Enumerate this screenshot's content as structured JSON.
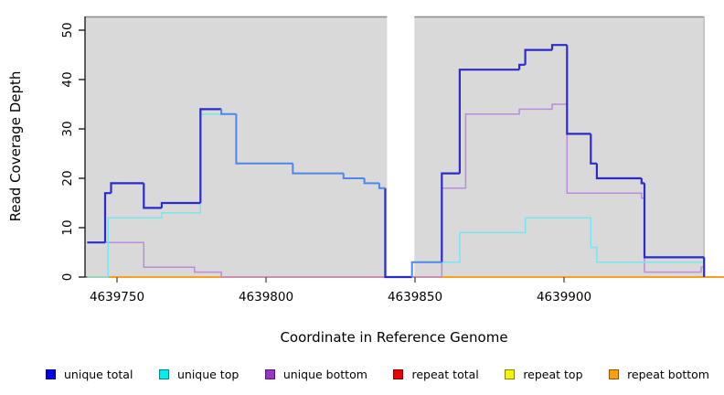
{
  "figure": {
    "background": "#ffffff",
    "plot_background": "#ffffff",
    "shaded_band_color": "#d9d9d9"
  },
  "chart_data": {
    "type": "line",
    "subtype": "step-coverage",
    "title": "",
    "xlabel": "Coordinate in Reference Genome",
    "ylabel": "Read Coverage Depth",
    "xlim": [
      4639739.3,
      4639947
    ],
    "ylim": [
      0,
      52.8
    ],
    "grid": false,
    "legend_position": "bottom",
    "x_ticks": [
      4639750,
      4639800,
      4639850,
      4639900
    ],
    "y_ticks": [
      0,
      10,
      20,
      30,
      40,
      50
    ],
    "shaded_regions": [
      {
        "x0": 4639739.3,
        "x1": 4639840.6,
        "color": "#d9d9d9"
      },
      {
        "x0": 4639849.8,
        "x1": 4639947,
        "color": "#d9d9d9"
      }
    ],
    "series": [
      {
        "name": "unique total",
        "color": "#2b2bcd",
        "overlap_color": "#4f86ec",
        "width": 2.2,
        "points": [
          [
            4639740,
            7
          ],
          [
            4639746,
            17
          ],
          [
            4639748,
            19
          ],
          [
            4639759,
            14
          ],
          [
            4639765,
            15
          ],
          [
            4639778,
            34
          ],
          [
            4639785,
            33
          ],
          [
            4639790,
            23
          ],
          [
            4639809,
            21
          ],
          [
            4639826,
            20
          ],
          [
            4639833,
            19
          ],
          [
            4639838,
            18
          ],
          [
            4639840,
            0
          ],
          [
            4639849,
            3
          ],
          [
            4639859,
            21
          ],
          [
            4639865,
            42
          ],
          [
            4639885,
            43
          ],
          [
            4639887,
            46
          ],
          [
            4639896,
            47
          ],
          [
            4639901,
            29
          ],
          [
            4639909,
            23
          ],
          [
            4639911,
            20
          ],
          [
            4639926,
            19
          ],
          [
            4639927,
            4
          ],
          [
            4639947,
            0
          ]
        ]
      },
      {
        "name": "unique top",
        "color": "#76e7ef",
        "width": 1.5,
        "points": [
          [
            4639740,
            0
          ],
          [
            4639747,
            12
          ],
          [
            4639765,
            13
          ],
          [
            4639778,
            33
          ],
          [
            4639790,
            23
          ],
          [
            4639809,
            21
          ],
          [
            4639826,
            20
          ],
          [
            4639833,
            19
          ],
          [
            4639838,
            18
          ],
          [
            4639840,
            0
          ],
          [
            4639849,
            3
          ],
          [
            4639865,
            9
          ],
          [
            4639887,
            12
          ],
          [
            4639909,
            6
          ],
          [
            4639911,
            3
          ]
        ]
      },
      {
        "name": "unique bottom",
        "color": "#bd8ade",
        "width": 1.5,
        "points": [
          [
            4639740,
            7
          ],
          [
            4639759,
            2
          ],
          [
            4639776,
            1
          ],
          [
            4639785,
            0
          ],
          [
            4639859,
            18
          ],
          [
            4639867,
            33
          ],
          [
            4639885,
            34
          ],
          [
            4639896,
            35
          ],
          [
            4639901,
            17
          ],
          [
            4639926,
            16
          ],
          [
            4639927,
            1
          ],
          [
            4639946,
            2
          ]
        ]
      },
      {
        "name": "repeat total",
        "color": "#cc2222",
        "width": 1.5,
        "points": [
          [
            4639740,
            0
          ]
        ]
      },
      {
        "name": "repeat top",
        "color": "#e8e83a",
        "width": 1.5,
        "points": [
          [
            4639740,
            0
          ]
        ]
      },
      {
        "name": "repeat bottom",
        "color": "#ff9e1b",
        "width": 2,
        "points": [
          [
            4639740,
            0
          ]
        ],
        "extend_past_box": true
      }
    ]
  },
  "legend": {
    "items": [
      {
        "label": "unique total",
        "color": "#0000ee"
      },
      {
        "label": "unique top",
        "color": "#00eeee"
      },
      {
        "label": "unique bottom",
        "color": "#9933cc"
      },
      {
        "label": "repeat total",
        "color": "#ee0000"
      },
      {
        "label": "repeat top",
        "color": "#f2f20a"
      },
      {
        "label": "repeat bottom",
        "color": "#ff9e0a"
      }
    ]
  }
}
